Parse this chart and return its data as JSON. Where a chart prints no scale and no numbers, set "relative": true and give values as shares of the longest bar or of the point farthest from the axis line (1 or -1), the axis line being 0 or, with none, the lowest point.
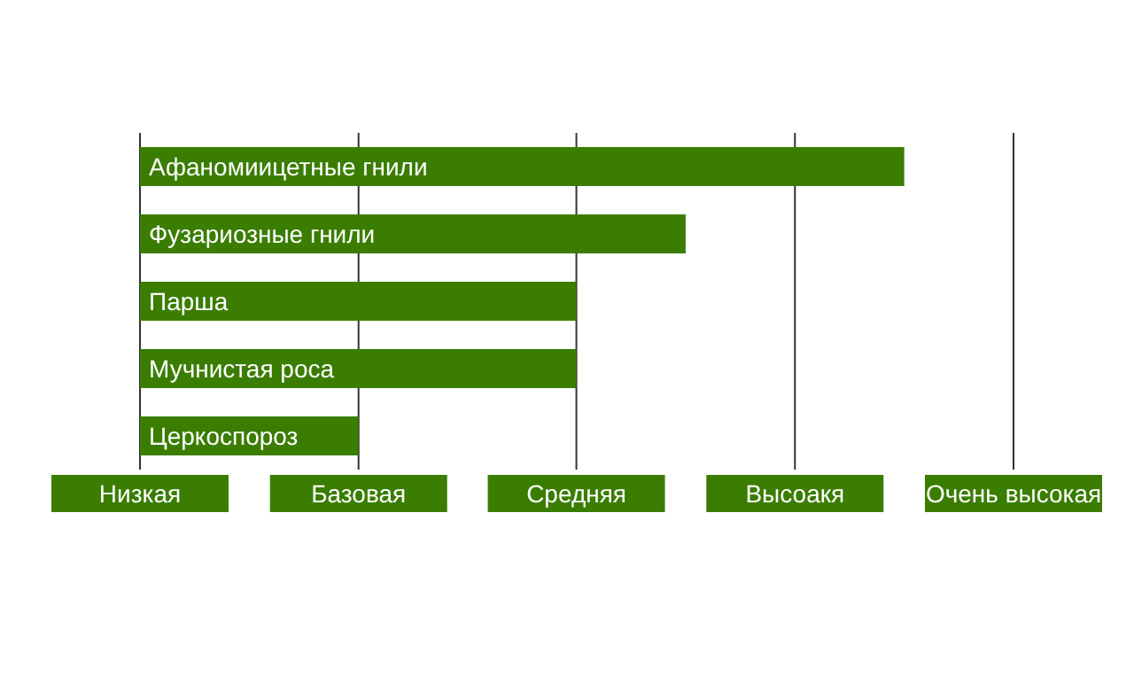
{
  "chart_data": {
    "type": "bar",
    "orientation": "horizontal",
    "relative": true,
    "categories": [
      "Афаномиицетные гнили",
      "Фузариозные гнили",
      "Парша",
      "Мучнистая роса",
      "Церкоспороз"
    ],
    "values": [
      1,
      0.714,
      0.571,
      0.571,
      0.286
    ],
    "color": "#3a7d00",
    "ref_lines": [
      {
        "axis": "x",
        "value": 0,
        "label": "Низкая",
        "color": "#333333"
      },
      {
        "axis": "x",
        "value": 0.286,
        "label": "Базовая",
        "color": "#333333"
      },
      {
        "axis": "x",
        "value": 0.571,
        "label": "Средняя",
        "color": "#333333"
      },
      {
        "axis": "x",
        "value": 0.857,
        "label": "Высоакя",
        "color": "#333333"
      },
      {
        "axis": "x",
        "value": 1.143,
        "label": "Очень высокая",
        "color": "#333333"
      }
    ],
    "tick_labels": false
  }
}
